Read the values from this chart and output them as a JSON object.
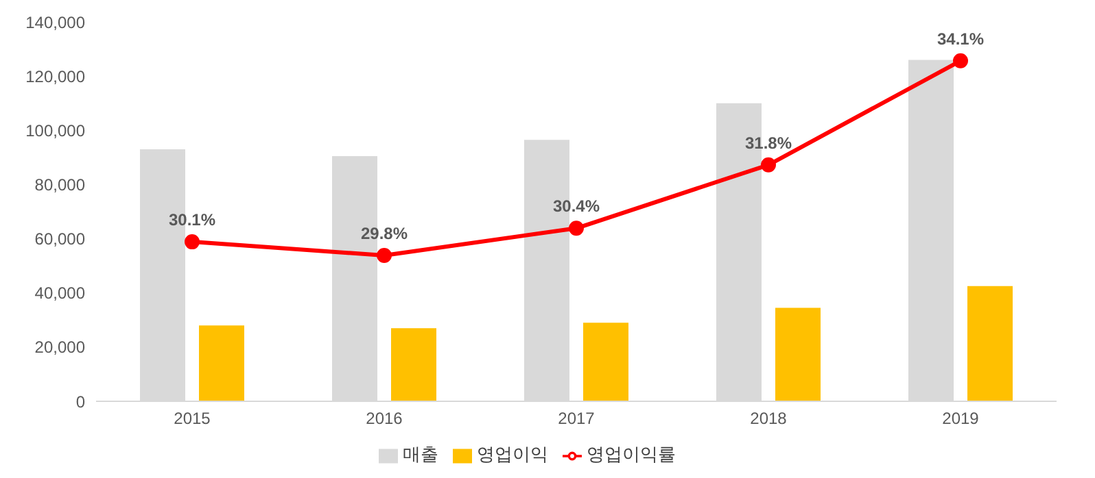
{
  "chart_data": {
    "type": "bar",
    "categories": [
      "2015",
      "2016",
      "2017",
      "2018",
      "2019"
    ],
    "series": [
      {
        "name": "매출",
        "color": "#d9d9d9",
        "values": [
          93000,
          90500,
          96500,
          110000,
          126000
        ]
      },
      {
        "name": "영업이익",
        "color": "#ffc000",
        "values": [
          28000,
          27000,
          29000,
          34500,
          42500
        ]
      },
      {
        "name": "영업이익률",
        "type": "line",
        "axis": "y2",
        "color": "#ff0000",
        "values": [
          30.1,
          29.8,
          30.4,
          31.8,
          34.1
        ],
        "value_labels": [
          "30.1%",
          "29.8%",
          "30.4%",
          "31.8%",
          "34.1%"
        ],
        "marker": "circle",
        "line_style": "solid"
      }
    ],
    "ylim": [
      0,
      140000
    ],
    "yticks": [
      0,
      {
        "value": 20000,
        "label": "20,000"
      },
      {
        "value": 40000,
        "label": "40,000"
      },
      {
        "value": 60000,
        "label": "60,000"
      },
      {
        "value": 80000,
        "label": "80,000"
      },
      {
        "value": 100000,
        "label": "100,000"
      },
      {
        "value": 120000,
        "label": "120,000"
      },
      {
        "value": 140000,
        "label": "140,000"
      }
    ],
    "grid": false,
    "legend": "bottom"
  }
}
